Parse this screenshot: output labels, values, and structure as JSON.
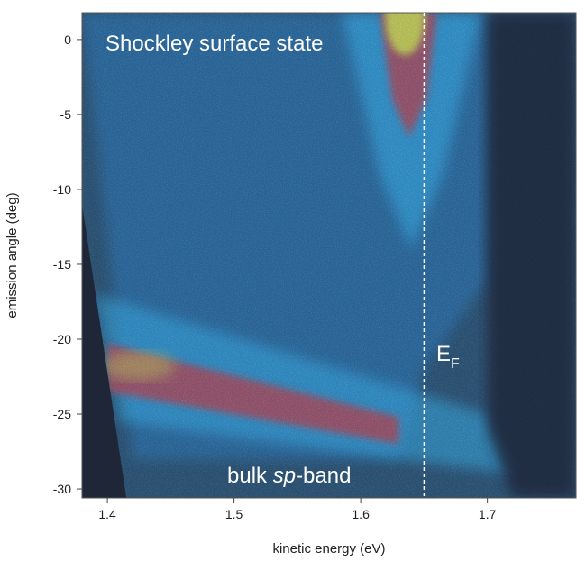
{
  "chart_data": {
    "type": "heatmap",
    "title": "",
    "xlabel": "kinetic energy  (eV)",
    "ylabel": "emission angle  (deg)",
    "xlim": [
      1.38,
      1.77
    ],
    "ylim": [
      -30.6,
      1.8
    ],
    "x_ticks": [
      1.4,
      1.5,
      1.6,
      1.7
    ],
    "y_ticks": [
      0,
      -5,
      -10,
      -15,
      -20,
      -25,
      -30
    ],
    "grid": false,
    "colormap": [
      "#1d2436",
      "#1b4a7a",
      "#2aa3d8",
      "#c21f1f",
      "#f0d010"
    ],
    "annotations": {
      "surface_state": "Shockley surface state",
      "bulk_band_prefix": "bulk ",
      "bulk_band_italic": "sp",
      "bulk_band_suffix": "-band",
      "fermi_main": "E",
      "fermi_sub": "F"
    },
    "fermi_level_ev": 1.65,
    "features": {
      "surface_state_apex": {
        "x": 1.635,
        "y": 1.5
      },
      "bulk_band_start": {
        "x": 1.4,
        "y": -22.0
      },
      "bulk_band_end": {
        "x": 1.63,
        "y": -26.5
      }
    }
  }
}
